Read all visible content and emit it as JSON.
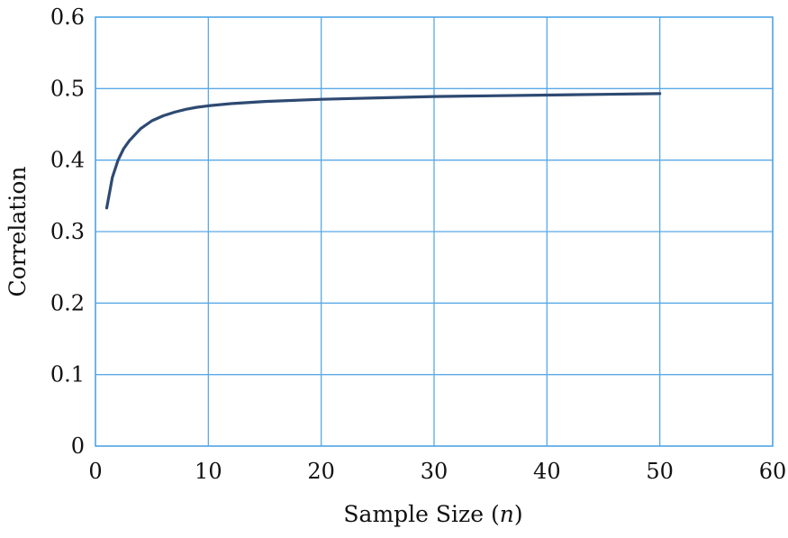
{
  "chart_data": {
    "type": "line",
    "title": "",
    "xlabel": "Sample Size",
    "xlabel_symbol": "n",
    "ylabel": "Correlation",
    "xlim": [
      0,
      60
    ],
    "ylim": [
      0,
      0.6
    ],
    "xticks": [
      0,
      10,
      20,
      30,
      40,
      50,
      60
    ],
    "yticks": [
      0,
      0.1,
      0.2,
      0.3,
      0.4,
      0.5,
      0.6
    ],
    "x_tick_labels": [
      "0",
      "10",
      "20",
      "30",
      "40",
      "50",
      "60"
    ],
    "y_tick_labels": [
      "0",
      "0.1",
      "0.2",
      "0.3",
      "0.4",
      "0.5",
      "0.6"
    ],
    "grid": true,
    "legend": "none",
    "colors": {
      "line": "#2e4a72",
      "grid": "#5aa9e6",
      "text": "#111111"
    },
    "series": [
      {
        "x": [
          1,
          1.5,
          2,
          2.5,
          3,
          4,
          5,
          6,
          7,
          8,
          9,
          10,
          12,
          15,
          20,
          25,
          30,
          35,
          40,
          45,
          50
        ],
        "values": [
          0.333,
          0.376,
          0.4,
          0.416,
          0.427,
          0.444,
          0.455,
          0.462,
          0.467,
          0.471,
          0.474,
          0.476,
          0.479,
          0.482,
          0.485,
          0.487,
          0.489,
          0.49,
          0.491,
          0.492,
          0.493
        ]
      }
    ]
  }
}
